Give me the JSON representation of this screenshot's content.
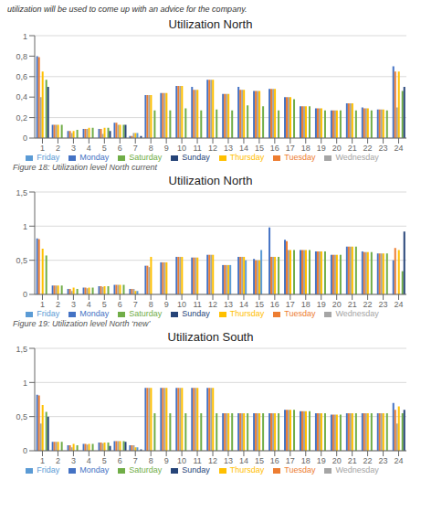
{
  "header": "utilization will be used to come up with an advice for the company.",
  "chart_data": [
    {
      "type": "bar",
      "title": "Utilization North",
      "caption": "Figure 18: Utilization level North current",
      "categories": [
        1,
        2,
        3,
        4,
        5,
        6,
        7,
        8,
        9,
        10,
        11,
        12,
        13,
        14,
        15,
        16,
        17,
        18,
        19,
        20,
        21,
        22,
        23,
        24
      ],
      "series": [
        {
          "name": "Monday",
          "color": "#4472C4",
          "values": [
            0.8,
            0.13,
            0.07,
            0.09,
            0.09,
            0.15,
            0.02,
            0.42,
            0.44,
            0.51,
            0.5,
            0.57,
            0.43,
            0.5,
            0.46,
            0.48,
            0.4,
            0.31,
            0.29,
            0.27,
            0.34,
            0.3,
            0.28,
            0.7
          ]
        },
        {
          "name": "Tuesday",
          "color": "#ED7D31",
          "values": [
            0.79,
            0.13,
            0.07,
            0.09,
            0.09,
            0.15,
            0.02,
            0.42,
            0.44,
            0.51,
            0.47,
            0.57,
            0.43,
            0.47,
            0.46,
            0.48,
            0.4,
            0.31,
            0.29,
            0.27,
            0.34,
            0.29,
            0.28,
            0.65
          ]
        },
        {
          "name": "Wednesday",
          "color": "#A5A5A5",
          "values": [
            0.4,
            0.13,
            0.05,
            0.09,
            0.04,
            0.13,
            0.05,
            0.42,
            0.44,
            0.51,
            0.47,
            0.57,
            0.43,
            0.47,
            0.46,
            0.48,
            0.4,
            0.31,
            0.29,
            0.27,
            0.34,
            0.29,
            0.28,
            0.3
          ]
        },
        {
          "name": "Thursday",
          "color": "#FFC000",
          "values": [
            0.65,
            0.13,
            0.07,
            0.1,
            0.1,
            0.13,
            0.05,
            0.42,
            0.44,
            0.51,
            0.47,
            0.57,
            0.43,
            0.47,
            0.46,
            0.48,
            0.4,
            0.31,
            0.29,
            0.27,
            0.34,
            0.29,
            0.28,
            0.65
          ]
        },
        {
          "name": "Friday",
          "color": "#5B9BD5",
          "values": [
            0.0,
            0.0,
            0.0,
            0.0,
            0.0,
            0.0,
            0.05,
            0.0,
            0.0,
            0.0,
            0.0,
            0.0,
            0.0,
            0.0,
            0.0,
            0.0,
            0.0,
            0.0,
            0.0,
            0.0,
            0.0,
            0.0,
            0.0,
            0.0
          ]
        },
        {
          "name": "Saturday",
          "color": "#70AD47",
          "values": [
            0.57,
            0.13,
            0.08,
            0.1,
            0.1,
            0.13,
            0.0,
            0.27,
            0.27,
            0.29,
            0.27,
            0.28,
            0.27,
            0.32,
            0.31,
            0.27,
            0.38,
            0.31,
            0.27,
            0.27,
            0.27,
            0.27,
            0.27,
            0.46
          ]
        },
        {
          "name": "Sunday",
          "color": "#264478",
          "values": [
            0.5,
            0.0,
            0.0,
            0.0,
            0.07,
            0.13,
            0.02,
            0.0,
            0.0,
            0.0,
            0.0,
            0.0,
            0.0,
            0.0,
            0.0,
            0.0,
            0.0,
            0.0,
            0.0,
            0.0,
            0.0,
            0.0,
            0.0,
            0.5
          ]
        }
      ],
      "ylim": [
        0,
        1.0
      ],
      "yticks": [
        0,
        {
          "value": 0.2,
          "label": "0,2"
        },
        {
          "value": 0.4,
          "label": "0,4"
        },
        {
          "value": 0.6,
          "label": "0,6"
        },
        {
          "value": 0.8,
          "label": "0,8"
        },
        1
      ],
      "grid": true,
      "legend": "bottom"
    },
    {
      "type": "bar",
      "title": "Utilization North",
      "caption": "Figure 19: Utilization level North ‘new’",
      "categories": [
        1,
        2,
        3,
        4,
        5,
        6,
        7,
        8,
        9,
        10,
        11,
        12,
        13,
        14,
        15,
        16,
        17,
        18,
        19,
        20,
        21,
        22,
        23,
        24
      ],
      "series": [
        {
          "name": "Monday",
          "color": "#4472C4",
          "values": [
            0.82,
            0.13,
            0.08,
            0.1,
            0.12,
            0.14,
            0.08,
            0.42,
            0.47,
            0.55,
            0.54,
            0.58,
            0.43,
            0.55,
            0.52,
            0.98,
            0.8,
            0.65,
            0.63,
            0.58,
            0.7,
            0.63,
            0.6,
            0.5
          ]
        },
        {
          "name": "Tuesday",
          "color": "#ED7D31",
          "values": [
            0.81,
            0.13,
            0.08,
            0.1,
            0.12,
            0.14,
            0.08,
            0.42,
            0.47,
            0.55,
            0.54,
            0.58,
            0.43,
            0.55,
            0.5,
            0.55,
            0.78,
            0.65,
            0.63,
            0.58,
            0.7,
            0.62,
            0.6,
            0.68
          ]
        },
        {
          "name": "Wednesday",
          "color": "#A5A5A5",
          "values": [
            0.0,
            0.13,
            0.05,
            0.09,
            0.11,
            0.14,
            0.08,
            0.4,
            0.47,
            0.55,
            0.54,
            0.58,
            0.43,
            0.55,
            0.5,
            0.55,
            0.65,
            0.65,
            0.63,
            0.58,
            0.7,
            0.62,
            0.6,
            0.0
          ]
        },
        {
          "name": "Thursday",
          "color": "#FFC000",
          "values": [
            0.67,
            0.13,
            0.1,
            0.1,
            0.12,
            0.14,
            0.05,
            0.55,
            0.47,
            0.55,
            0.54,
            0.58,
            0.43,
            0.55,
            0.5,
            0.55,
            0.65,
            0.65,
            0.63,
            0.58,
            0.7,
            0.62,
            0.6,
            0.65
          ]
        },
        {
          "name": "Friday",
          "color": "#5B9BD5",
          "values": [
            0.0,
            0.0,
            0.0,
            0.0,
            0.0,
            0.0,
            0.05,
            0.0,
            0.0,
            0.0,
            0.0,
            0.0,
            0.43,
            0.5,
            0.65,
            0.0,
            0.0,
            0.0,
            0.0,
            0.0,
            0.0,
            0.0,
            0.0,
            0.0
          ]
        },
        {
          "name": "Saturday",
          "color": "#70AD47",
          "values": [
            0.57,
            0.13,
            0.08,
            0.1,
            0.12,
            0.14,
            0.0,
            0.0,
            0.0,
            0.0,
            0.0,
            0.0,
            0.0,
            0.0,
            0.0,
            0.55,
            0.65,
            0.65,
            0.63,
            0.58,
            0.7,
            0.62,
            0.6,
            0.34
          ]
        },
        {
          "name": "Sunday",
          "color": "#264478",
          "values": [
            0.0,
            0.0,
            0.0,
            0.0,
            0.0,
            0.0,
            0.0,
            0.0,
            0.0,
            0.0,
            0.0,
            0.0,
            0.0,
            0.0,
            0.0,
            0.0,
            0.0,
            0.0,
            0.0,
            0.0,
            0.0,
            0.0,
            0.0,
            0.92
          ]
        }
      ],
      "ylim": [
        0,
        1.5
      ],
      "yticks": [
        0,
        {
          "value": 0.5,
          "label": "0,5"
        },
        1,
        {
          "value": 1.5,
          "label": "1,5"
        }
      ],
      "grid": true,
      "legend": "bottom"
    },
    {
      "type": "bar",
      "title": "Utilization South",
      "categories": [
        1,
        2,
        3,
        4,
        5,
        6,
        7,
        8,
        9,
        10,
        11,
        12,
        13,
        14,
        15,
        16,
        17,
        18,
        19,
        20,
        21,
        22,
        23,
        24
      ],
      "series": [
        {
          "name": "Monday",
          "color": "#4472C4",
          "values": [
            0.82,
            0.13,
            0.08,
            0.1,
            0.12,
            0.14,
            0.08,
            0.92,
            0.92,
            0.92,
            0.92,
            0.92,
            0.55,
            0.55,
            0.55,
            0.55,
            0.6,
            0.58,
            0.55,
            0.53,
            0.55,
            0.55,
            0.55,
            0.7
          ]
        },
        {
          "name": "Tuesday",
          "color": "#ED7D31",
          "values": [
            0.81,
            0.13,
            0.08,
            0.1,
            0.12,
            0.14,
            0.08,
            0.92,
            0.92,
            0.92,
            0.92,
            0.92,
            0.55,
            0.55,
            0.55,
            0.55,
            0.6,
            0.58,
            0.55,
            0.53,
            0.55,
            0.55,
            0.55,
            0.6
          ]
        },
        {
          "name": "Wednesday",
          "color": "#A5A5A5",
          "values": [
            0.4,
            0.13,
            0.05,
            0.09,
            0.11,
            0.14,
            0.08,
            0.92,
            0.92,
            0.92,
            0.92,
            0.92,
            0.55,
            0.55,
            0.55,
            0.55,
            0.6,
            0.58,
            0.55,
            0.53,
            0.55,
            0.55,
            0.55,
            0.4
          ]
        },
        {
          "name": "Thursday",
          "color": "#FFC000",
          "values": [
            0.67,
            0.13,
            0.1,
            0.1,
            0.12,
            0.14,
            0.05,
            0.92,
            0.92,
            0.92,
            0.92,
            0.92,
            0.55,
            0.55,
            0.55,
            0.55,
            0.6,
            0.58,
            0.55,
            0.53,
            0.55,
            0.55,
            0.55,
            0.65
          ]
        },
        {
          "name": "Friday",
          "color": "#5B9BD5",
          "values": [
            0.0,
            0.0,
            0.0,
            0.0,
            0.0,
            0.0,
            0.05,
            0.0,
            0.0,
            0.0,
            0.0,
            0.0,
            0.0,
            0.0,
            0.0,
            0.0,
            0.0,
            0.0,
            0.0,
            0.0,
            0.0,
            0.0,
            0.0,
            0.0
          ]
        },
        {
          "name": "Saturday",
          "color": "#70AD47",
          "values": [
            0.57,
            0.13,
            0.08,
            0.1,
            0.12,
            0.14,
            0.0,
            0.55,
            0.55,
            0.55,
            0.55,
            0.55,
            0.55,
            0.55,
            0.55,
            0.55,
            0.6,
            0.58,
            0.55,
            0.53,
            0.55,
            0.55,
            0.55,
            0.55
          ]
        },
        {
          "name": "Sunday",
          "color": "#264478",
          "values": [
            0.5,
            0.0,
            0.0,
            0.0,
            0.07,
            0.13,
            0.02,
            0.0,
            0.0,
            0.0,
            0.0,
            0.0,
            0.0,
            0.0,
            0.0,
            0.0,
            0.0,
            0.0,
            0.0,
            0.0,
            0.0,
            0.0,
            0.0,
            0.6
          ]
        }
      ],
      "ylim": [
        0,
        1.5
      ],
      "yticks": [
        0,
        {
          "value": 0.5,
          "label": "0,5"
        },
        1,
        {
          "value": 1.5,
          "label": "1,5"
        }
      ],
      "grid": true,
      "legend": "bottom"
    }
  ]
}
